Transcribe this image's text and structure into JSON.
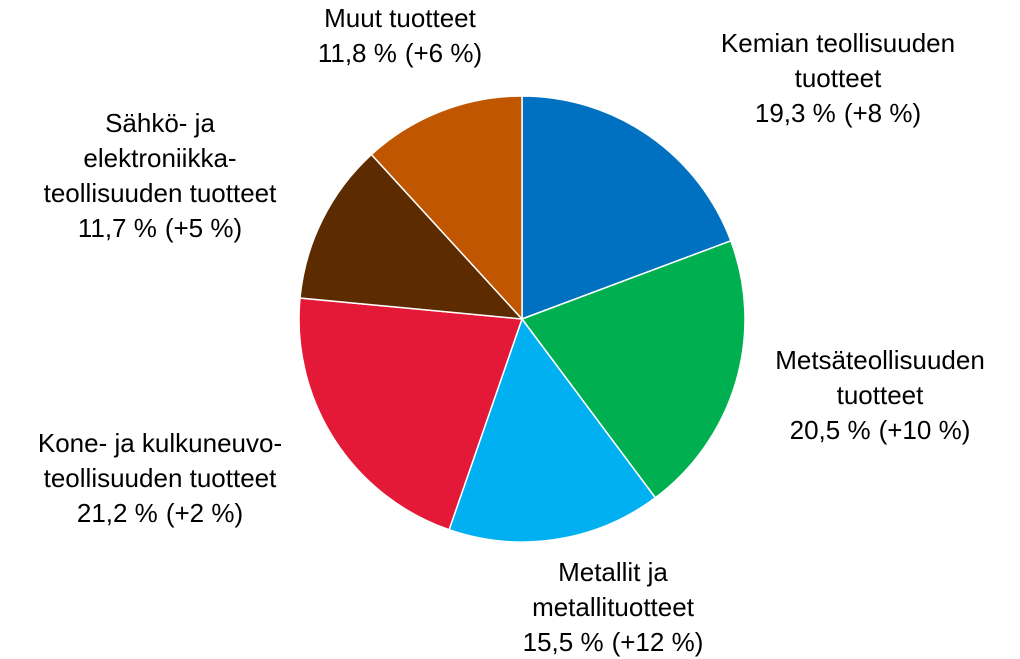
{
  "chart_data": {
    "type": "pie",
    "categories": [
      [
        "Kemian teollisuuden",
        "tuotteet"
      ],
      [
        "Metsäteollisuuden",
        "tuotteet"
      ],
      [
        "Metallit ja",
        "metallituotteet"
      ],
      [
        "Kone- ja kulkuneuvo-",
        "teollisuuden tuotteet"
      ],
      [
        "Sähkö- ja",
        "elektroniikka-",
        "teollisuuden tuotteet"
      ],
      [
        "Muut tuotteet"
      ]
    ],
    "values": [
      19.3,
      20.5,
      15.5,
      21.2,
      11.7,
      11.8
    ],
    "value_labels": [
      "19,3 %",
      "20,5 %",
      "15,5 %",
      "21,2 %",
      "11,7 %",
      "11,8 %"
    ],
    "changes": [
      8,
      10,
      12,
      2,
      5,
      6
    ],
    "change_labels": [
      "(+8 %)",
      "(+10 %)",
      "(+12 %)",
      "(+2 %)",
      "(+5 %)",
      "(+6 %)"
    ],
    "colors": [
      "#0070c0",
      "#00b050",
      "#00b0f0",
      "#e31937",
      "#5c2b00",
      "#c05600"
    ]
  }
}
